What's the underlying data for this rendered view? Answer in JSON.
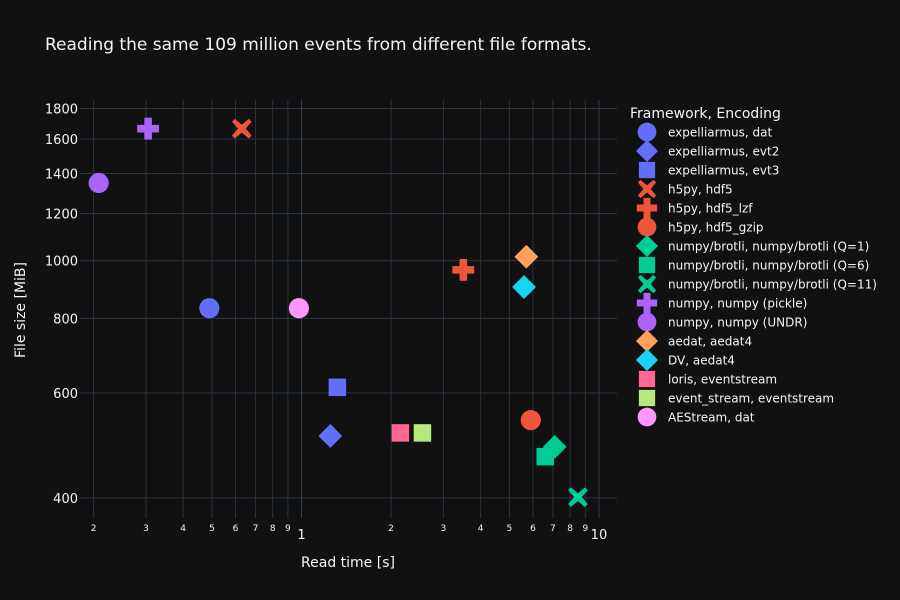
{
  "chart_data": {
    "type": "scatter",
    "title": "Reading the same 109 million events from different file formats.",
    "xlabel": "Read time [s]",
    "ylabel": "File size [MiB]",
    "x_scale": "log",
    "y_scale": "log",
    "xlim": [
      0.18,
      11.5
    ],
    "ylim": [
      370,
      1860
    ],
    "y_ticks": [
      400,
      600,
      800,
      1000,
      1200,
      1400,
      1600,
      1800
    ],
    "x_major_ticks": [
      {
        "value": 1,
        "label": "1"
      },
      {
        "value": 10,
        "label": "10"
      }
    ],
    "x_minor_ticks": [
      {
        "value": 0.2,
        "label": "2"
      },
      {
        "value": 0.3,
        "label": "3"
      },
      {
        "value": 0.4,
        "label": "4"
      },
      {
        "value": 0.5,
        "label": "5"
      },
      {
        "value": 0.6,
        "label": "6"
      },
      {
        "value": 0.7,
        "label": "7"
      },
      {
        "value": 0.8,
        "label": "8"
      },
      {
        "value": 0.9,
        "label": "9"
      },
      {
        "value": 2,
        "label": "2"
      },
      {
        "value": 3,
        "label": "3"
      },
      {
        "value": 4,
        "label": "4"
      },
      {
        "value": 5,
        "label": "5"
      },
      {
        "value": 6,
        "label": "6"
      },
      {
        "value": 7,
        "label": "7"
      },
      {
        "value": 8,
        "label": "8"
      },
      {
        "value": 9,
        "label": "9"
      }
    ],
    "grid": true,
    "legend_title": "Framework, Encoding",
    "legend_position": "right",
    "series": [
      {
        "name": "expelliarmus, dat",
        "symbol": "circle",
        "color": "#636efa",
        "x": 0.49,
        "y": 832
      },
      {
        "name": "expelliarmus, evt2",
        "symbol": "diamond",
        "color": "#636efa",
        "x": 1.25,
        "y": 508
      },
      {
        "name": "expelliarmus, evt3",
        "symbol": "square",
        "color": "#636efa",
        "x": 1.32,
        "y": 613
      },
      {
        "name": "h5py, hdf5",
        "symbol": "x",
        "color": "#EF553B",
        "x": 0.63,
        "y": 1665
      },
      {
        "name": "h5py, hdf5_lzf",
        "symbol": "cross",
        "color": "#EF553B",
        "x": 3.5,
        "y": 965
      },
      {
        "name": "h5py, hdf5_gzip",
        "symbol": "circle",
        "color": "#EF553B",
        "x": 5.9,
        "y": 540
      },
      {
        "name": "numpy/brotli, numpy/brotli (Q=1)",
        "symbol": "diamond",
        "color": "#00cc96",
        "x": 7.1,
        "y": 487
      },
      {
        "name": "numpy/brotli, numpy/brotli (Q=6)",
        "symbol": "square",
        "color": "#00cc96",
        "x": 6.6,
        "y": 469
      },
      {
        "name": "numpy/brotli, numpy/brotli (Q=11)",
        "symbol": "x",
        "color": "#00cc96",
        "x": 8.5,
        "y": 401
      },
      {
        "name": "numpy, numpy (pickle)",
        "symbol": "cross",
        "color": "#ab63fa",
        "x": 0.305,
        "y": 1665
      },
      {
        "name": "numpy, numpy (UNDR)",
        "symbol": "circle",
        "color": "#ab63fa",
        "x": 0.208,
        "y": 1350
      },
      {
        "name": "aedat, aedat4",
        "symbol": "diamond",
        "color": "#FFA15A",
        "x": 5.7,
        "y": 1015
      },
      {
        "name": "DV, aedat4",
        "symbol": "diamond",
        "color": "#19d3f3",
        "x": 5.6,
        "y": 903
      },
      {
        "name": "loris, eventstream",
        "symbol": "square",
        "color": "#FF6692",
        "x": 2.15,
        "y": 514
      },
      {
        "name": "event_stream, eventstream",
        "symbol": "square",
        "color": "#B6E880",
        "x": 2.55,
        "y": 514
      },
      {
        "name": "AEStream, dat",
        "symbol": "circle",
        "color": "#FF97FF",
        "x": 0.98,
        "y": 832
      }
    ]
  }
}
